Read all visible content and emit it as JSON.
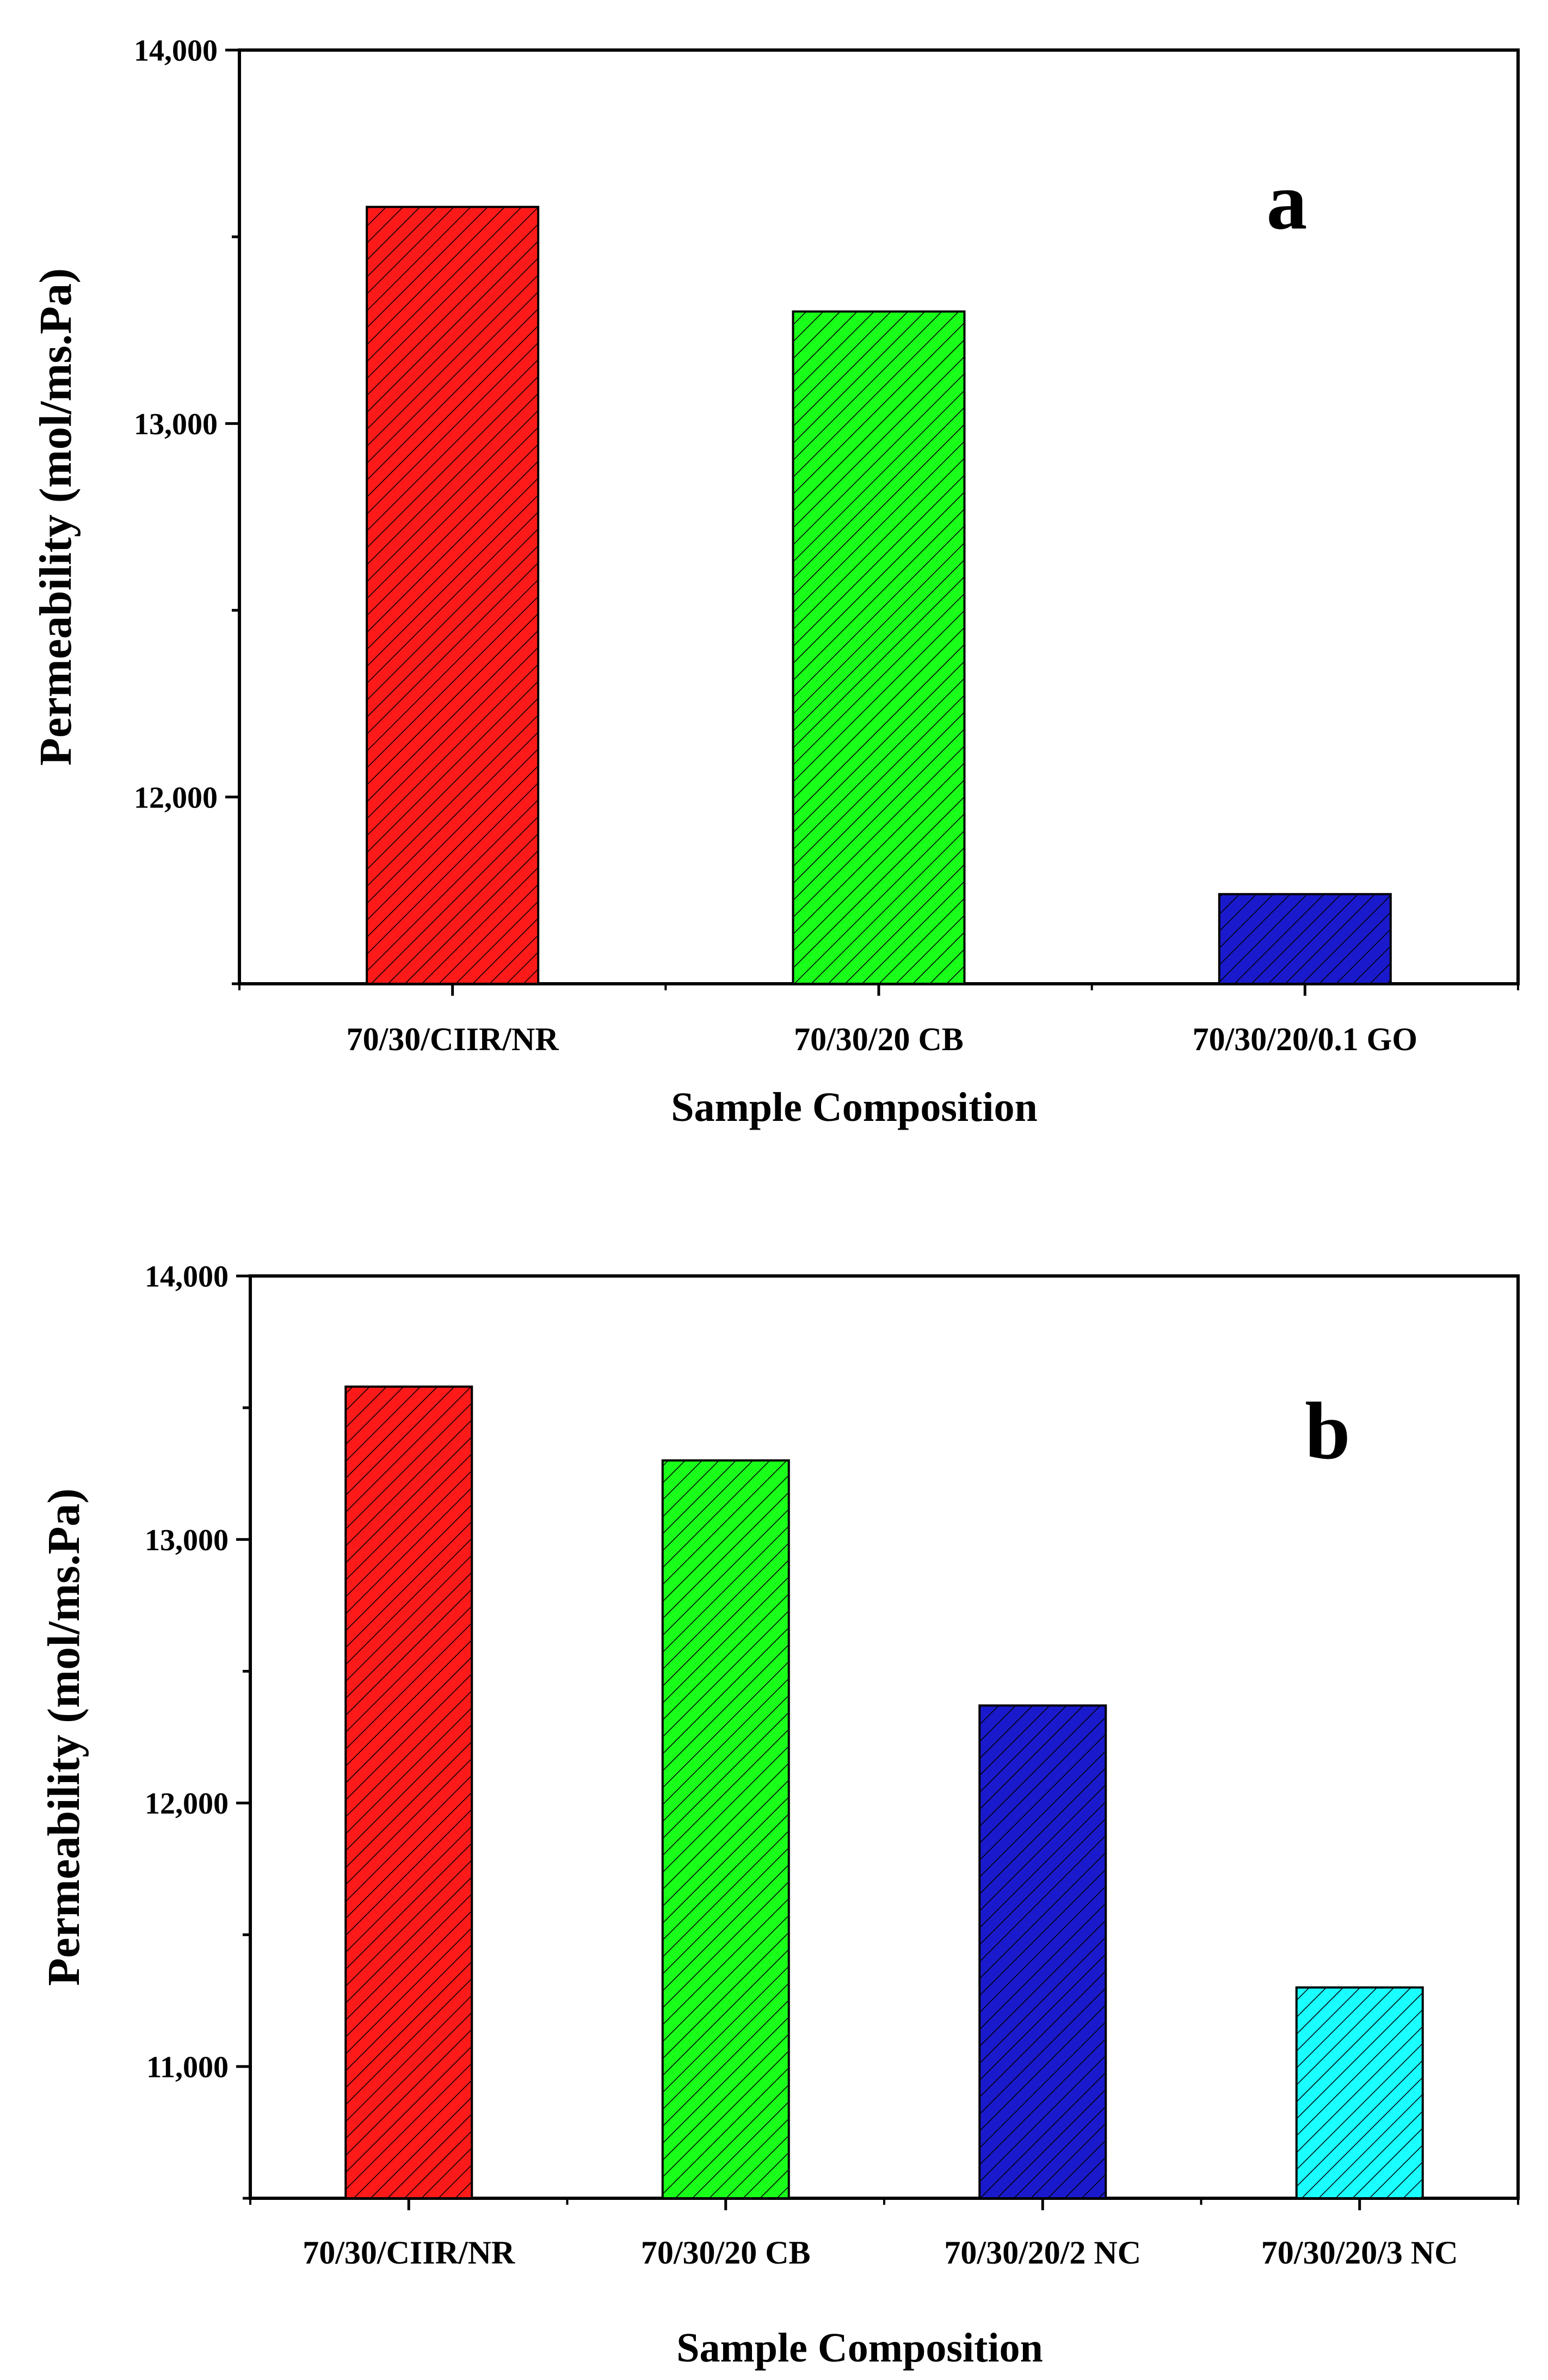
{
  "chart_data": [
    {
      "type": "bar",
      "panel_label": "a",
      "title": "",
      "xlabel": "Sample Composition",
      "ylabel": "Permeability (mol/ms.Pa)",
      "ylim": [
        11500,
        14000
      ],
      "yticks": [
        12000,
        13000,
        14000
      ],
      "ytick_labels": [
        "12,000",
        "13,000",
        "14,000"
      ],
      "categories": [
        "70/30/CIIR/NR",
        "70/30/20 CB",
        "70/30/20/0.1 GO"
      ],
      "values": [
        13580,
        13300,
        11740
      ],
      "colors": [
        "#ff1a1a",
        "#1aff1a",
        "#1a1acc"
      ]
    },
    {
      "type": "bar",
      "panel_label": "b",
      "title": "",
      "xlabel": "Sample Composition",
      "ylabel": "Permeability (mol/ms.Pa)",
      "ylim": [
        10500,
        14000
      ],
      "yticks": [
        11000,
        12000,
        13000,
        14000
      ],
      "ytick_labels": [
        "11,000",
        "12,000",
        "13,000",
        "14,000"
      ],
      "categories": [
        "70/30/CIIR/NR",
        "70/30/20 CB",
        "70/30/20/2 NC",
        "70/30/20/3 NC"
      ],
      "values": [
        13580,
        13300,
        12370,
        11300
      ],
      "colors": [
        "#ff1a1a",
        "#1aff1a",
        "#1a1acc",
        "#1affff"
      ]
    }
  ]
}
